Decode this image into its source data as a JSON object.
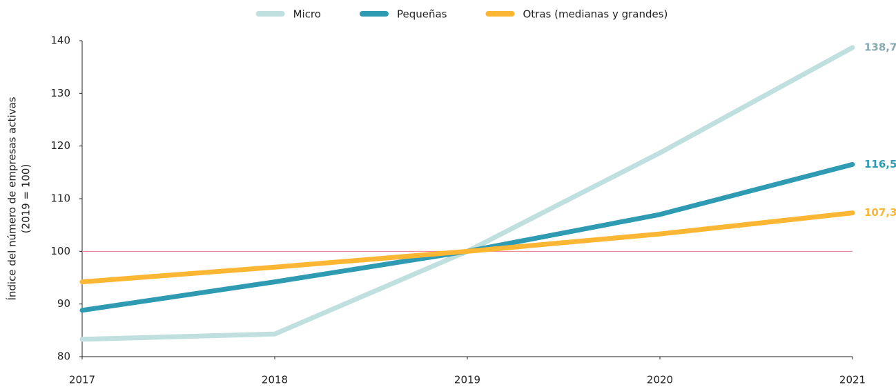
{
  "chart_data": {
    "type": "line",
    "ylabel": [
      "Índice del número de empresas activas",
      "(2019 = 100)"
    ],
    "x": [
      2017,
      2018,
      2019,
      2020,
      2021
    ],
    "xlim": [
      2017,
      2021
    ],
    "xticks": [
      2017,
      2018,
      2019,
      2020,
      2021
    ],
    "ylim": [
      80,
      140
    ],
    "yticks": [
      80,
      90,
      100,
      110,
      120,
      130,
      140
    ],
    "reference_line": {
      "value": 100,
      "color": "#e8788a"
    },
    "series": [
      {
        "name": "Micro",
        "color": "#c0e0df",
        "label_color": "#86a9b0",
        "values": [
          83.3,
          84.3,
          100,
          118.7,
          138.7
        ],
        "value_labels": [
          null,
          null,
          null,
          null,
          "138,7"
        ]
      },
      {
        "name": "Pequeñas",
        "color": "#2f9bb3",
        "label_color": "#2f9bb3",
        "values": [
          88.8,
          94.2,
          100,
          107,
          116.5
        ],
        "value_labels": [
          null,
          null,
          null,
          null,
          "116,5"
        ]
      },
      {
        "name": "Otras (medianas y grandes)",
        "color": "#fbb634",
        "label_color": "#fbb634",
        "values": [
          94.2,
          97,
          100,
          103.3,
          107.3
        ],
        "value_labels": [
          null,
          null,
          null,
          null,
          "107,3"
        ]
      }
    ]
  }
}
